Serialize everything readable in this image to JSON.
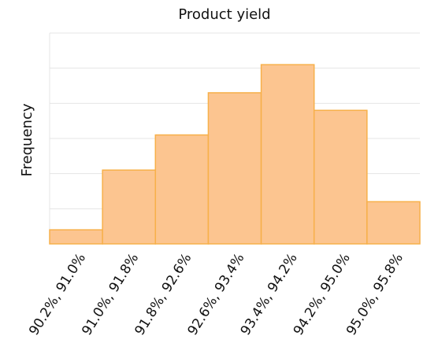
{
  "chart_data": {
    "type": "bar",
    "title": "Product yield",
    "y_label": "Frequency",
    "categories": [
      "90.2%, 91.0%",
      "91.0%, 91.8%",
      "91.8%, 92.6%",
      "92.6%, 93.4%",
      "93.4%, 94.2%",
      "94.2%, 95.0%",
      "95.0%, 95.8%"
    ],
    "values": [
      0.4,
      2.1,
      3.1,
      4.3,
      5.1,
      3.8,
      1.2
    ],
    "color": "#fcc590",
    "edge_color": "#f7b04a",
    "ylim": [
      0,
      6
    ],
    "yticks": [
      0,
      1,
      2,
      3,
      4,
      5,
      6
    ],
    "grid": true
  }
}
